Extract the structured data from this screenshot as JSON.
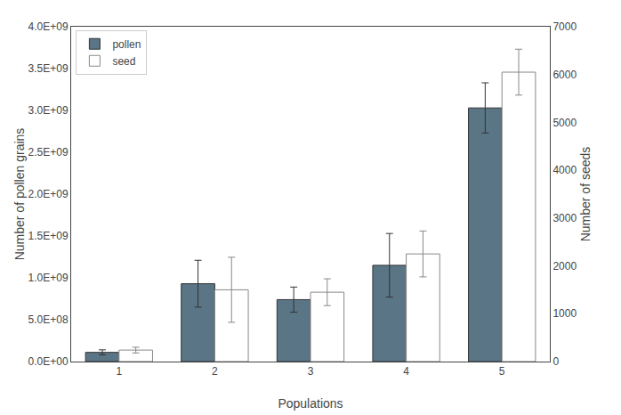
{
  "chart_data": {
    "type": "bar",
    "xlabel": "Populations",
    "ylabel": "Number of pollen grains",
    "y2label": "Number of seeds",
    "categories": [
      "1",
      "2",
      "3",
      "4",
      "5"
    ],
    "series": [
      {
        "name": "pollen",
        "color": "#5a7585",
        "values": [
          110000000,
          930000000,
          740000000,
          1150000000,
          3030000000
        ],
        "errors": [
          30000000,
          280000000,
          150000000,
          380000000,
          300000000
        ]
      },
      {
        "name": "seed",
        "color": "#ffffff",
        "axis": "y2",
        "values": [
          240,
          1500,
          1450,
          2250,
          6050
        ],
        "errors": [
          60,
          680,
          280,
          480,
          480
        ]
      }
    ],
    "ylim": [
      0,
      4000000000
    ],
    "yticks": [
      {
        "value": 0,
        "label": "0.0E+00"
      },
      {
        "value": 500000000,
        "label": "5.0E+08"
      },
      {
        "value": 1000000000,
        "label": "1.0E+09"
      },
      {
        "value": 1500000000,
        "label": "1.5E+09"
      },
      {
        "value": 2000000000,
        "label": "2.0E+09"
      },
      {
        "value": 2500000000,
        "label": "2.5E+09"
      },
      {
        "value": 3000000000,
        "label": "3.0E+09"
      },
      {
        "value": 3500000000,
        "label": "3.5E+09"
      },
      {
        "value": 4000000000,
        "label": "4.0E+09"
      }
    ],
    "y2lim": [
      0,
      7000
    ],
    "y2ticks": [
      0,
      1000,
      2000,
      3000,
      4000,
      5000,
      6000,
      7000
    ],
    "grid": false,
    "legend": "upper left"
  }
}
